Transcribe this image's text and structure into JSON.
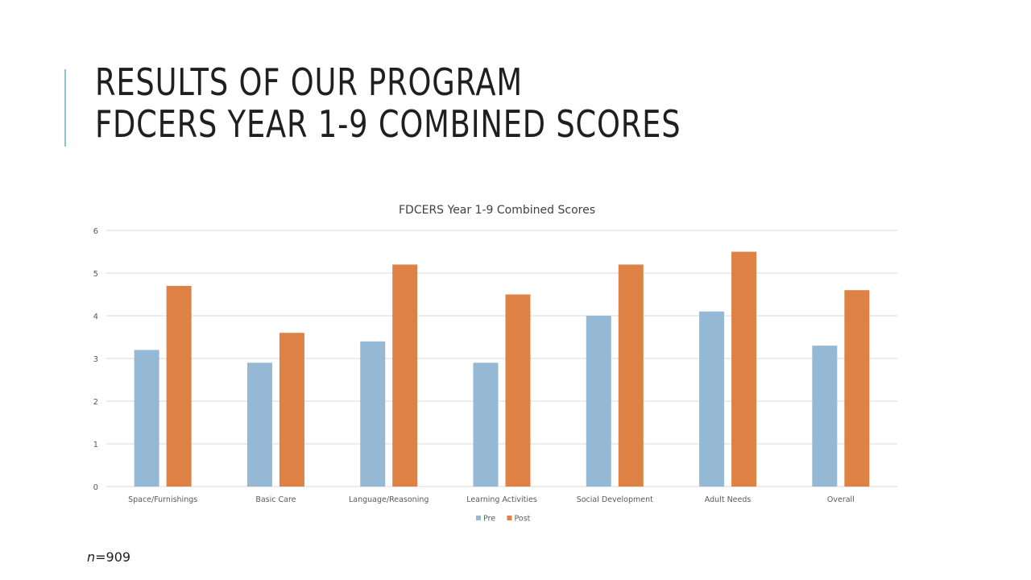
{
  "slide": {
    "title_line1": "RESULTS OF OUR PROGRAM",
    "title_line2": "FDCERS YEAR 1-9 COMBINED SCORES",
    "footnote_var": "n",
    "footnote_value": "=909",
    "accent_color": "#8fc1c8"
  },
  "chart_data": {
    "type": "bar",
    "title": "FDCERS Year 1-9 Combined Scores",
    "categories": [
      "Space/Furnishings",
      "Basic Care",
      "Language/Reasoning",
      "Learning Activities",
      "Social Development",
      "Adult Needs",
      "Overall"
    ],
    "series": [
      {
        "name": "Pre",
        "color": "#95b8d5",
        "values": [
          3.2,
          2.9,
          3.4,
          2.9,
          4.0,
          4.1,
          3.3
        ]
      },
      {
        "name": "Post",
        "color": "#de8145",
        "values": [
          4.7,
          3.6,
          5.2,
          4.5,
          5.2,
          5.5,
          4.6
        ]
      }
    ],
    "ylim": [
      0,
      6
    ],
    "yticks": [
      "0",
      "1",
      "2",
      "3",
      "4",
      "5",
      "6"
    ],
    "grid": true,
    "legend": "bottom"
  }
}
